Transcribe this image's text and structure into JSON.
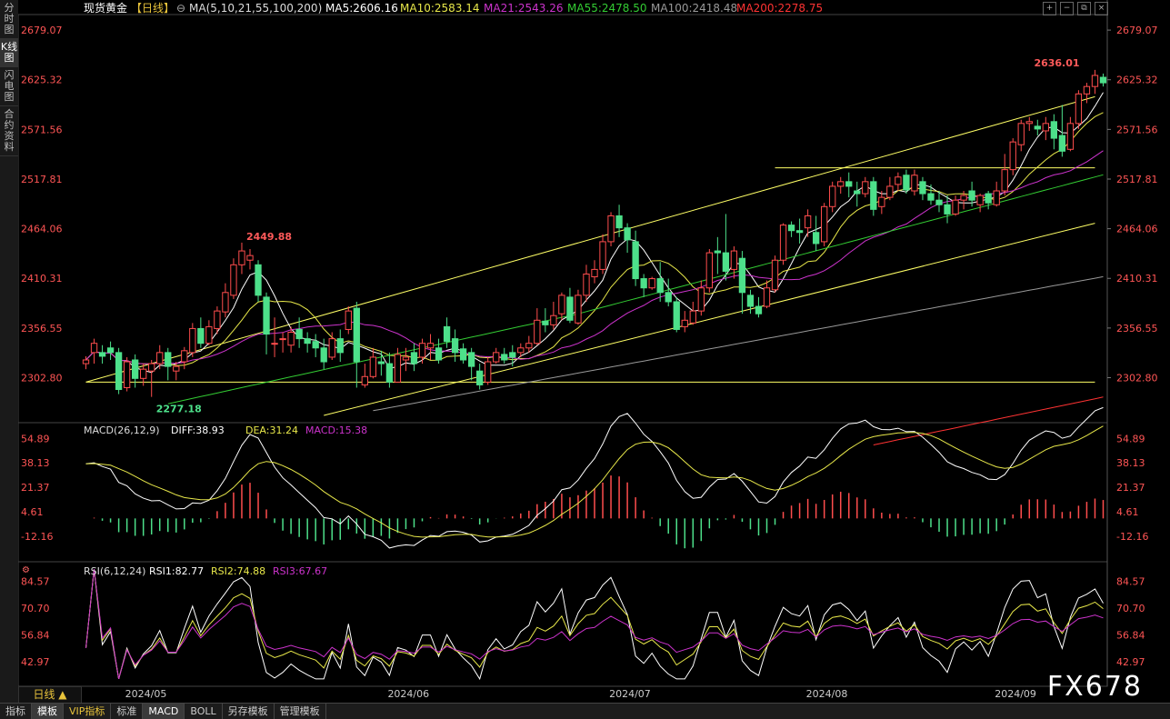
{
  "left_tabs": [
    "分时图",
    "K线图",
    "闪电图",
    "合约资料"
  ],
  "active_left_tab": 1,
  "header": {
    "name": "现货黄金",
    "period_tag": "【日线】",
    "ma_params": "MA(5,10,21,55,100,200)",
    "ma5": "MA5:2606.16",
    "ma10": "MA10:2583.14",
    "ma21": "MA21:2543.26",
    "ma55": "MA55:2478.50",
    "ma100": "MA100:2418.48",
    "ma200": "MA200:2278.75"
  },
  "colors": {
    "up": "#ff4d4d",
    "down": "#4de08a",
    "ma5": "#ffffff",
    "ma10": "#e8e84a",
    "ma21": "#cc33cc",
    "ma55": "#33cc33",
    "ma100": "#999999",
    "ma200": "#ff3333",
    "trend": "#ffff66",
    "axis_text": "#ff5555",
    "grid": "#333333"
  },
  "price_axis_labels": [
    "2679.07",
    "2625.32",
    "2571.56",
    "2517.81",
    "2464.06",
    "2410.31",
    "2356.55",
    "2302.80"
  ],
  "high_annotation": "2449.88",
  "low_annotation": "2277.18",
  "last_high_annotation": "2636.01",
  "macd": {
    "title": "MACD(26,12,9)",
    "diff": "DIFF:38.93",
    "dea": "DEA:31.24",
    "macd": "MACD:15.38",
    "axis_labels": [
      "54.89",
      "38.13",
      "21.37",
      "4.61",
      "-12.16"
    ]
  },
  "rsi": {
    "title": "RSI(6,12,24)",
    "rsi1": "RSI1:82.77",
    "rsi2": "RSI2:74.88",
    "rsi3": "RSI3:67.67",
    "axis_labels": [
      "84.57",
      "70.70",
      "56.84",
      "42.97"
    ]
  },
  "x_axis_labels": [
    "2024/05",
    "2024/06",
    "2024/07",
    "2024/08",
    "2024/09"
  ],
  "period_button": "日线 ▲",
  "bottom_tabs": [
    "指标",
    "模板",
    "VIP指标",
    "标准",
    "MACD",
    "BOLL",
    "另存模板",
    "管理模板"
  ],
  "active_bottom_tabs": [
    1,
    4
  ],
  "watermark": "FX678",
  "chart_data": {
    "type": "candlestick",
    "title": "现货黄金【日线】",
    "x_axis": [
      "2024/05",
      "2024/06",
      "2024/07",
      "2024/08",
      "2024/09"
    ],
    "ylim": [
      2260,
      2690
    ],
    "y_ticks": [
      2679.07,
      2625.32,
      2571.56,
      2517.81,
      2464.06,
      2410.31,
      2356.55,
      2302.8
    ],
    "annotations": [
      {
        "label": "2449.88",
        "type": "high"
      },
      {
        "label": "2277.18",
        "type": "low"
      },
      {
        "label": "2636.01",
        "type": "high"
      }
    ],
    "candles": [
      [
        2318,
        2322,
        2312,
        2326
      ],
      [
        2330,
        2340,
        2318,
        2345
      ],
      [
        2330,
        2326,
        2318,
        2338
      ],
      [
        2335,
        2330,
        2322,
        2342
      ],
      [
        2330,
        2290,
        2285,
        2335
      ],
      [
        2292,
        2320,
        2288,
        2325
      ],
      [
        2322,
        2302,
        2292,
        2328
      ],
      [
        2302,
        2312,
        2294,
        2318
      ],
      [
        2310,
        2318,
        2282,
        2322
      ],
      [
        2318,
        2330,
        2312,
        2338
      ],
      [
        2330,
        2315,
        2300,
        2335
      ],
      [
        2310,
        2315,
        2300,
        2320
      ],
      [
        2320,
        2332,
        2312,
        2336
      ],
      [
        2330,
        2356,
        2325,
        2362
      ],
      [
        2356,
        2340,
        2335,
        2368
      ],
      [
        2340,
        2358,
        2338,
        2365
      ],
      [
        2356,
        2375,
        2350,
        2380
      ],
      [
        2374,
        2395,
        2368,
        2405
      ],
      [
        2392,
        2425,
        2388,
        2432
      ],
      [
        2425,
        2440,
        2415,
        2449
      ],
      [
        2430,
        2435,
        2420,
        2442
      ],
      [
        2425,
        2392,
        2385,
        2430
      ],
      [
        2390,
        2350,
        2328,
        2395
      ],
      [
        2340,
        2340,
        2325,
        2368
      ],
      [
        2345,
        2345,
        2330,
        2352
      ],
      [
        2338,
        2352,
        2330,
        2358
      ],
      [
        2355,
        2345,
        2335,
        2368
      ],
      [
        2345,
        2340,
        2330,
        2352
      ],
      [
        2342,
        2335,
        2325,
        2350
      ],
      [
        2335,
        2320,
        2312,
        2345
      ],
      [
        2325,
        2345,
        2322,
        2352
      ],
      [
        2345,
        2330,
        2320,
        2355
      ],
      [
        2355,
        2375,
        2350,
        2380
      ],
      [
        2378,
        2320,
        2292,
        2385
      ],
      [
        2295,
        2304,
        2292,
        2318
      ],
      [
        2304,
        2325,
        2302,
        2335
      ],
      [
        2320,
        2318,
        2305,
        2332
      ],
      [
        2318,
        2298,
        2292,
        2330
      ],
      [
        2298,
        2328,
        2298,
        2335
      ],
      [
        2322,
        2325,
        2310,
        2335
      ],
      [
        2330,
        2318,
        2310,
        2340
      ],
      [
        2325,
        2340,
        2318,
        2345
      ],
      [
        2335,
        2340,
        2322,
        2350
      ],
      [
        2335,
        2322,
        2318,
        2345
      ],
      [
        2358,
        2342,
        2335,
        2368
      ],
      [
        2345,
        2330,
        2320,
        2355
      ],
      [
        2334,
        2322,
        2318,
        2340
      ],
      [
        2330,
        2315,
        2300,
        2335
      ],
      [
        2310,
        2295,
        2290,
        2318
      ],
      [
        2298,
        2320,
        2295,
        2325
      ],
      [
        2320,
        2330,
        2318,
        2335
      ],
      [
        2328,
        2322,
        2318,
        2335
      ],
      [
        2330,
        2325,
        2315,
        2338
      ],
      [
        2330,
        2335,
        2325,
        2340
      ],
      [
        2335,
        2340,
        2330,
        2348
      ],
      [
        2340,
        2365,
        2338,
        2378
      ],
      [
        2364,
        2360,
        2352,
        2378
      ],
      [
        2360,
        2370,
        2355,
        2385
      ],
      [
        2372,
        2392,
        2365,
        2395
      ],
      [
        2390,
        2365,
        2362,
        2400
      ],
      [
        2362,
        2392,
        2360,
        2398
      ],
      [
        2392,
        2415,
        2385,
        2425
      ],
      [
        2412,
        2420,
        2405,
        2430
      ],
      [
        2420,
        2450,
        2415,
        2458
      ],
      [
        2450,
        2478,
        2445,
        2482
      ],
      [
        2478,
        2465,
        2455,
        2490
      ],
      [
        2465,
        2452,
        2438,
        2470
      ],
      [
        2450,
        2410,
        2402,
        2462
      ],
      [
        2410,
        2400,
        2390,
        2415
      ],
      [
        2400,
        2410,
        2398,
        2412
      ],
      [
        2410,
        2395,
        2385,
        2428
      ],
      [
        2395,
        2385,
        2380,
        2410
      ],
      [
        2385,
        2355,
        2352,
        2390
      ],
      [
        2358,
        2365,
        2352,
        2375
      ],
      [
        2362,
        2375,
        2360,
        2385
      ],
      [
        2375,
        2400,
        2370,
        2408
      ],
      [
        2400,
        2438,
        2395,
        2442
      ],
      [
        2440,
        2438,
        2415,
        2455
      ],
      [
        2438,
        2418,
        2408,
        2480
      ],
      [
        2420,
        2440,
        2410,
        2445
      ],
      [
        2432,
        2395,
        2372,
        2440
      ],
      [
        2392,
        2380,
        2372,
        2398
      ],
      [
        2380,
        2372,
        2368,
        2390
      ],
      [
        2380,
        2400,
        2378,
        2408
      ],
      [
        2398,
        2430,
        2395,
        2435
      ],
      [
        2430,
        2468,
        2425,
        2470
      ],
      [
        2468,
        2462,
        2455,
        2472
      ],
      [
        2462,
        2460,
        2448,
        2475
      ],
      [
        2465,
        2478,
        2455,
        2485
      ],
      [
        2460,
        2448,
        2440,
        2478
      ],
      [
        2450,
        2488,
        2445,
        2492
      ],
      [
        2488,
        2510,
        2482,
        2515
      ],
      [
        2510,
        2515,
        2502,
        2520
      ],
      [
        2515,
        2510,
        2498,
        2525
      ],
      [
        2505,
        2502,
        2488,
        2515
      ],
      [
        2502,
        2515,
        2498,
        2520
      ],
      [
        2515,
        2485,
        2478,
        2520
      ],
      [
        2488,
        2498,
        2480,
        2505
      ],
      [
        2498,
        2510,
        2495,
        2520
      ],
      [
        2512,
        2520,
        2505,
        2525
      ],
      [
        2522,
        2506,
        2502,
        2528
      ],
      [
        2505,
        2522,
        2500,
        2528
      ],
      [
        2515,
        2502,
        2495,
        2520
      ],
      [
        2502,
        2495,
        2490,
        2512
      ],
      [
        2495,
        2490,
        2482,
        2505
      ],
      [
        2490,
        2480,
        2470,
        2500
      ],
      [
        2480,
        2495,
        2478,
        2500
      ],
      [
        2495,
        2500,
        2485,
        2505
      ],
      [
        2505,
        2495,
        2488,
        2515
      ],
      [
        2490,
        2500,
        2482,
        2502
      ],
      [
        2502,
        2492,
        2485,
        2505
      ],
      [
        2490,
        2505,
        2488,
        2515
      ],
      [
        2505,
        2528,
        2500,
        2545
      ],
      [
        2528,
        2558,
        2522,
        2562
      ],
      [
        2555,
        2578,
        2548,
        2582
      ],
      [
        2578,
        2580,
        2570,
        2585
      ],
      [
        2575,
        2572,
        2565,
        2582
      ],
      [
        2570,
        2578,
        2560,
        2585
      ],
      [
        2580,
        2562,
        2550,
        2588
      ],
      [
        2565,
        2548,
        2542,
        2598
      ],
      [
        2550,
        2578,
        2548,
        2585
      ],
      [
        2578,
        2610,
        2572,
        2614
      ],
      [
        2610,
        2618,
        2600,
        2622
      ],
      [
        2618,
        2630,
        2610,
        2636
      ],
      [
        2628,
        2622,
        2618,
        2632
      ]
    ],
    "series": [
      {
        "name": "MA5",
        "color": "#ffffff"
      },
      {
        "name": "MA10",
        "color": "#e8e84a"
      },
      {
        "name": "MA21",
        "color": "#cc33cc"
      },
      {
        "name": "MA55",
        "color": "#33cc33"
      },
      {
        "name": "MA100",
        "color": "#999999"
      },
      {
        "name": "MA200",
        "color": "#ff3333"
      }
    ],
    "trendlines": [
      {
        "from": [
          0,
          2298
        ],
        "to": [
          123,
          2607
        ]
      },
      {
        "from": [
          29,
          2262
        ],
        "to": [
          123,
          2470
        ]
      },
      {
        "from": [
          0,
          2298
        ],
        "to": [
          123,
          2298
        ]
      },
      {
        "from": [
          84,
          2530
        ],
        "to": [
          123,
          2530
        ]
      }
    ],
    "macd_panel": {
      "ylim": [
        -26,
        62
      ],
      "ticks": [
        54.89,
        38.13,
        21.37,
        4.61,
        -12.16
      ],
      "diff_last": 38.93,
      "dea_last": 31.24,
      "macd_last": 15.38
    },
    "rsi_panel": {
      "ylim": [
        33,
        92
      ],
      "ticks": [
        84.57,
        70.7,
        56.84,
        42.97
      ],
      "rsi1_last": 82.77,
      "rsi2_last": 74.88,
      "rsi3_last": 67.67
    }
  }
}
